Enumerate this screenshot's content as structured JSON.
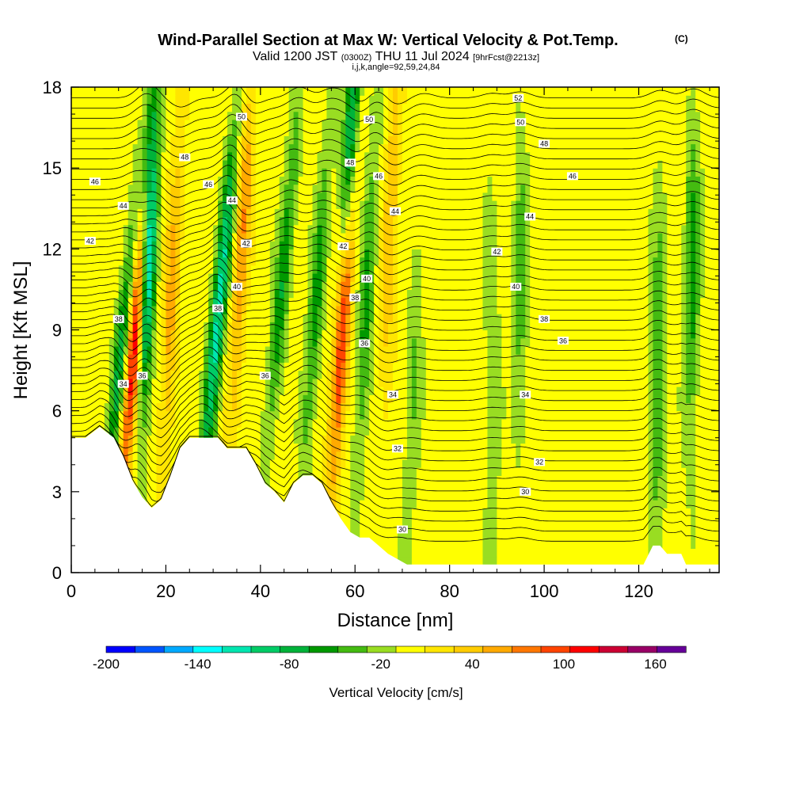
{
  "header": {
    "title": "Wind-Parallel Section at Max W: Vertical Velocity & Pot.Temp.",
    "title_mark": "(C)",
    "valid_label": "Valid 1200 JST",
    "valid_utc": "(0300Z)",
    "valid_date": "THU 11 Jul 2024",
    "forecast_tag": "[9hrFcst@2213z]",
    "params": "i,j,k,angle=92,59,24,84"
  },
  "chart_data": {
    "type": "heatmap",
    "xlabel": "Distance [nm]",
    "ylabel": "Height [Kft MSL]",
    "xlim": [
      0,
      137
    ],
    "ylim": [
      0,
      18
    ],
    "x_ticks": [
      0,
      20,
      40,
      60,
      80,
      100,
      120
    ],
    "y_ticks": [
      0,
      3,
      6,
      9,
      12,
      15,
      18
    ],
    "x_tick_labels": [
      "0",
      "20",
      "40",
      "60",
      "80",
      "100",
      "120"
    ],
    "y_tick_labels": [
      "0",
      "3",
      "6",
      "9",
      "12",
      "15",
      "18"
    ],
    "grid": false,
    "terrain_height_kft": [
      [
        0,
        5.0
      ],
      [
        3,
        5.0
      ],
      [
        6,
        5.4
      ],
      [
        9,
        5.0
      ],
      [
        11,
        4.3
      ],
      [
        13,
        3.4
      ],
      [
        15,
        2.8
      ],
      [
        17,
        2.4
      ],
      [
        19,
        2.7
      ],
      [
        21,
        3.6
      ],
      [
        23,
        4.6
      ],
      [
        25,
        5.0
      ],
      [
        27,
        5.0
      ],
      [
        29,
        5.0
      ],
      [
        31,
        5.0
      ],
      [
        33,
        4.6
      ],
      [
        35,
        4.6
      ],
      [
        37,
        4.6
      ],
      [
        39,
        4.0
      ],
      [
        41,
        3.3
      ],
      [
        43,
        3.0
      ],
      [
        45,
        2.6
      ],
      [
        47,
        3.3
      ],
      [
        49,
        3.6
      ],
      [
        51,
        3.6
      ],
      [
        53,
        3.3
      ],
      [
        55,
        2.6
      ],
      [
        57,
        2.0
      ],
      [
        59,
        1.5
      ],
      [
        61,
        1.3
      ],
      [
        63,
        1.3
      ],
      [
        65,
        1.0
      ],
      [
        67,
        0.7
      ],
      [
        69,
        0.5
      ],
      [
        71,
        0.3
      ],
      [
        80,
        0.3
      ],
      [
        100,
        0.3
      ],
      [
        121,
        0.3
      ],
      [
        123,
        1.0
      ],
      [
        124.5,
        1.0
      ],
      [
        126,
        0.7
      ],
      [
        129,
        0.7
      ],
      [
        130,
        0.3
      ],
      [
        137,
        0.3
      ]
    ],
    "vertical_velocity_cms": {
      "background": 10,
      "features": [
        {
          "x": 9,
          "y": 0.45,
          "w": -80,
          "slant": 0.55
        },
        {
          "x": 12,
          "y": 0.5,
          "w": 140,
          "slant": 0.45
        },
        {
          "x": 15,
          "y": 0.7,
          "w": -160,
          "slant": 0.2
        },
        {
          "x": 20,
          "y": 0.55,
          "w": 60,
          "slant": 0.25
        },
        {
          "x": 29,
          "y": 0.55,
          "w": -120,
          "slant": 0.5
        },
        {
          "x": 34,
          "y": 0.7,
          "w": 70,
          "slant": 0.3
        },
        {
          "x": 42,
          "y": 0.6,
          "w": -70,
          "slant": 0.5
        },
        {
          "x": 50,
          "y": 0.55,
          "w": -60,
          "slant": 0.4
        },
        {
          "x": 56,
          "y": 0.55,
          "w": 160,
          "slant": 0.35
        },
        {
          "x": 56,
          "y": 0.85,
          "w": -140,
          "slant": 0.3
        },
        {
          "x": 61,
          "y": 0.55,
          "w": -60,
          "slant": 0.3
        },
        {
          "x": 66,
          "y": 0.7,
          "w": 50,
          "slant": 0.2
        },
        {
          "x": 72,
          "y": 0.4,
          "w": -30,
          "slant": 0.2
        },
        {
          "x": 89,
          "y": 0.4,
          "w": -30,
          "slant": 0.0
        },
        {
          "x": 95,
          "y": 0.6,
          "w": -40,
          "slant": 0.0
        },
        {
          "x": 124,
          "y": 0.4,
          "w": -50,
          "slant": 0.05
        },
        {
          "x": 131,
          "y": 0.6,
          "w": -60,
          "slant": 0.05
        }
      ]
    },
    "potential_temperature_contours": [
      {
        "value": 30,
        "label": "30"
      },
      {
        "value": 32,
        "label": "32"
      },
      {
        "value": 34,
        "label": "34"
      },
      {
        "value": 36,
        "label": "36"
      },
      {
        "value": 38,
        "label": "38"
      },
      {
        "value": 40,
        "label": "40"
      },
      {
        "value": 42,
        "label": "42"
      },
      {
        "value": 44,
        "label": "44"
      },
      {
        "value": 46,
        "label": "46"
      },
      {
        "value": 48,
        "label": "48"
      },
      {
        "value": 50,
        "label": "50"
      },
      {
        "value": 52,
        "label": "52"
      }
    ],
    "contour_label_points": [
      {
        "label": "52",
        "x": 94.5,
        "y": 17.6
      },
      {
        "label": "50",
        "x": 36,
        "y": 16.9
      },
      {
        "label": "50",
        "x": 63,
        "y": 16.8
      },
      {
        "label": "50",
        "x": 95,
        "y": 16.7
      },
      {
        "label": "48",
        "x": 24,
        "y": 15.4
      },
      {
        "label": "48",
        "x": 59,
        "y": 15.2
      },
      {
        "label": "48",
        "x": 100,
        "y": 15.9
      },
      {
        "label": "46",
        "x": 5,
        "y": 14.5
      },
      {
        "label": "46",
        "x": 29,
        "y": 14.4
      },
      {
        "label": "46",
        "x": 65,
        "y": 14.7
      },
      {
        "label": "46",
        "x": 106,
        "y": 14.7
      },
      {
        "label": "44",
        "x": 11,
        "y": 13.6
      },
      {
        "label": "44",
        "x": 34,
        "y": 13.8
      },
      {
        "label": "44",
        "x": 68.5,
        "y": 13.4
      },
      {
        "label": "44",
        "x": 97,
        "y": 13.2
      },
      {
        "label": "42",
        "x": 4,
        "y": 12.3
      },
      {
        "label": "42",
        "x": 37,
        "y": 12.2
      },
      {
        "label": "42",
        "x": 57.5,
        "y": 12.1
      },
      {
        "label": "42",
        "x": 90,
        "y": 11.9
      },
      {
        "label": "40",
        "x": 35,
        "y": 10.6
      },
      {
        "label": "40",
        "x": 62.5,
        "y": 10.9
      },
      {
        "label": "40",
        "x": 94,
        "y": 10.6
      },
      {
        "label": "38",
        "x": 10,
        "y": 9.4
      },
      {
        "label": "38",
        "x": 31,
        "y": 9.8
      },
      {
        "label": "38",
        "x": 60,
        "y": 10.2
      },
      {
        "label": "38",
        "x": 100,
        "y": 9.4
      },
      {
        "label": "36",
        "x": 62,
        "y": 8.5
      },
      {
        "label": "36",
        "x": 104,
        "y": 8.6
      },
      {
        "label": "36",
        "x": 15,
        "y": 7.3
      },
      {
        "label": "36",
        "x": 41,
        "y": 7.3
      },
      {
        "label": "34",
        "x": 11,
        "y": 7.0
      },
      {
        "label": "34",
        "x": 68,
        "y": 6.6
      },
      {
        "label": "34",
        "x": 96,
        "y": 6.6
      },
      {
        "label": "32",
        "x": 69,
        "y": 4.6
      },
      {
        "label": "32",
        "x": 99,
        "y": 4.1
      },
      {
        "label": "30",
        "x": 96,
        "y": 3.0
      },
      {
        "label": "30",
        "x": 70,
        "y": 1.6
      }
    ],
    "colorbar": {
      "label": "Vertical Velocity [cm/s]",
      "min": -200,
      "max": 180,
      "step": 20,
      "tick_values": [
        -200,
        -140,
        -80,
        -20,
        40,
        100,
        160
      ],
      "tick_labels": [
        "-200",
        "-140",
        "-80",
        "-20",
        "40",
        "100",
        "160"
      ],
      "colors": [
        "#0000ff",
        "#0055ff",
        "#00aaff",
        "#00ffff",
        "#00e6b0",
        "#00cc66",
        "#00b33a",
        "#009900",
        "#44bb11",
        "#99dd22",
        "#ffff00",
        "#ffe600",
        "#ffcc00",
        "#ffaa00",
        "#ff7700",
        "#ff4400",
        "#ff0000",
        "#cc0033",
        "#990066",
        "#660099"
      ]
    }
  }
}
